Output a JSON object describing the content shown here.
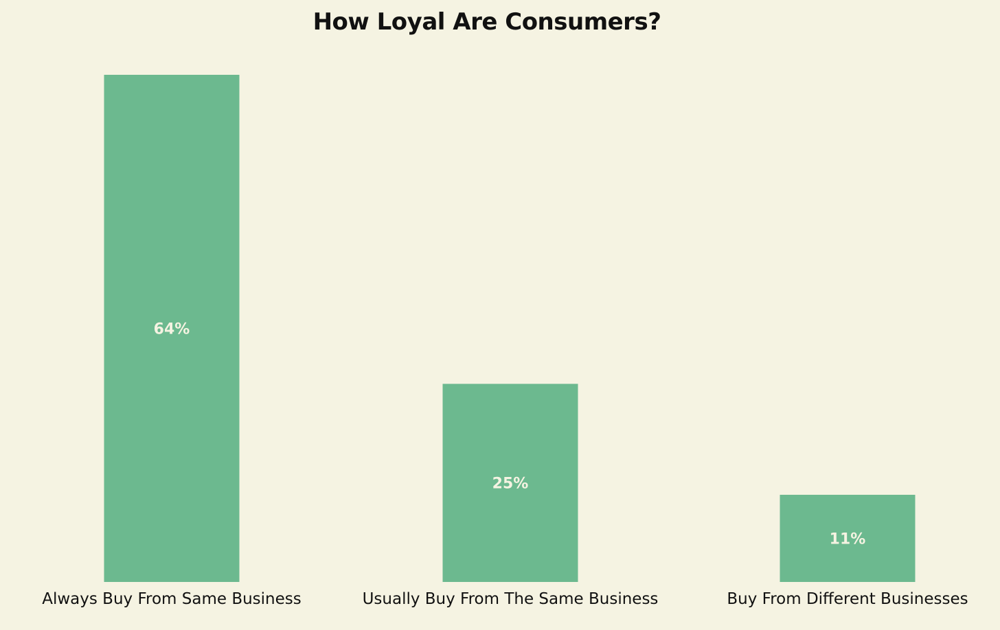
{
  "colors": {
    "background": "#f5f3e2",
    "bar": "#6cb98f",
    "bar_label": "#f5f3e2",
    "text": "#111111"
  },
  "chart_data": {
    "type": "bar",
    "title": "How Loyal Are Consumers?",
    "xlabel": "",
    "ylabel": "",
    "categories": [
      "Always Buy From Same Business",
      "Usually Buy From The Same Business",
      "Buy From Different Businesses"
    ],
    "values": [
      64,
      25,
      11
    ],
    "value_labels": [
      "64%",
      "25%",
      "11%"
    ],
    "ylim": [
      0,
      64
    ],
    "grid": false,
    "legend": "none"
  }
}
